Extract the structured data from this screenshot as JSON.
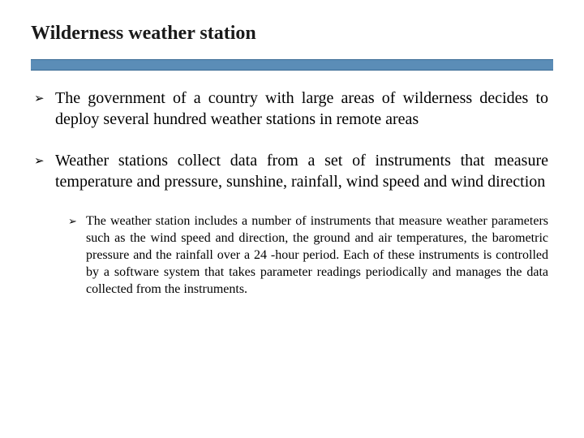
{
  "title": "Wilderness weather station",
  "divider_color": "#5b8db7",
  "bullets": {
    "level1": [
      "The government of a country with large areas of wilderness decides to deploy several hundred weather stations in remote areas",
      "Weather stations collect data from a set of instruments that measure temperature and pressure, sunshine, rainfall, wind speed and wind direction"
    ],
    "level2": [
      "The weather station includes a number of instruments that measure weather parameters such as the wind speed and direction, the ground and air temperatures, the barometric pressure and the rainfall over a 24 -hour period. Each of these instruments is controlled by a software system that takes parameter readings periodically and manages the data collected from the instruments."
    ]
  },
  "bullet_marker": "➢"
}
